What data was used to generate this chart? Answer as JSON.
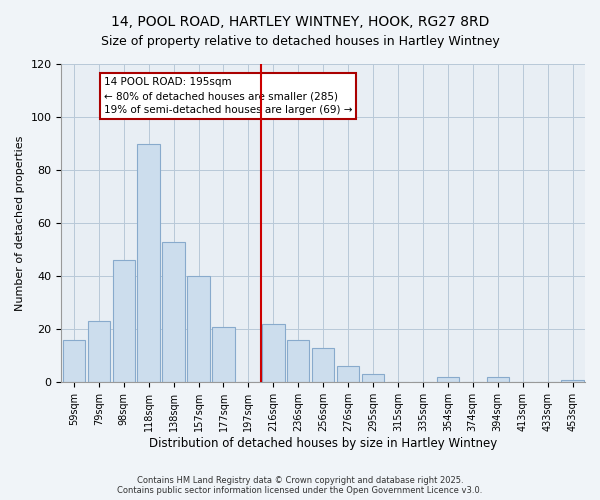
{
  "title": "14, POOL ROAD, HARTLEY WINTNEY, HOOK, RG27 8RD",
  "subtitle": "Size of property relative to detached houses in Hartley Wintney",
  "xlabel": "Distribution of detached houses by size in Hartley Wintney",
  "ylabel": "Number of detached properties",
  "bar_labels": [
    "59sqm",
    "79sqm",
    "98sqm",
    "118sqm",
    "138sqm",
    "157sqm",
    "177sqm",
    "197sqm",
    "216sqm",
    "236sqm",
    "256sqm",
    "276sqm",
    "295sqm",
    "315sqm",
    "335sqm",
    "354sqm",
    "374sqm",
    "394sqm",
    "413sqm",
    "433sqm",
    "453sqm"
  ],
  "bar_values": [
    16,
    23,
    46,
    90,
    53,
    40,
    21,
    0,
    22,
    16,
    13,
    6,
    3,
    0,
    0,
    2,
    0,
    2,
    0,
    0,
    1
  ],
  "bar_color": "#ccdded",
  "bar_edge_color": "#88aacc",
  "vline_x": 7.5,
  "vline_color": "#cc0000",
  "annotation_title": "14 POOL ROAD: 195sqm",
  "annotation_line1": "← 80% of detached houses are smaller (285)",
  "annotation_line2": "19% of semi-detached houses are larger (69) →",
  "ylim": [
    0,
    120
  ],
  "yticks": [
    0,
    20,
    40,
    60,
    80,
    100,
    120
  ],
  "footer1": "Contains HM Land Registry data © Crown copyright and database right 2025.",
  "footer2": "Contains public sector information licensed under the Open Government Licence v3.0.",
  "bg_color": "#f0f4f8",
  "plot_bg_color": "#e8eef4",
  "title_fontsize": 10,
  "subtitle_fontsize": 9
}
